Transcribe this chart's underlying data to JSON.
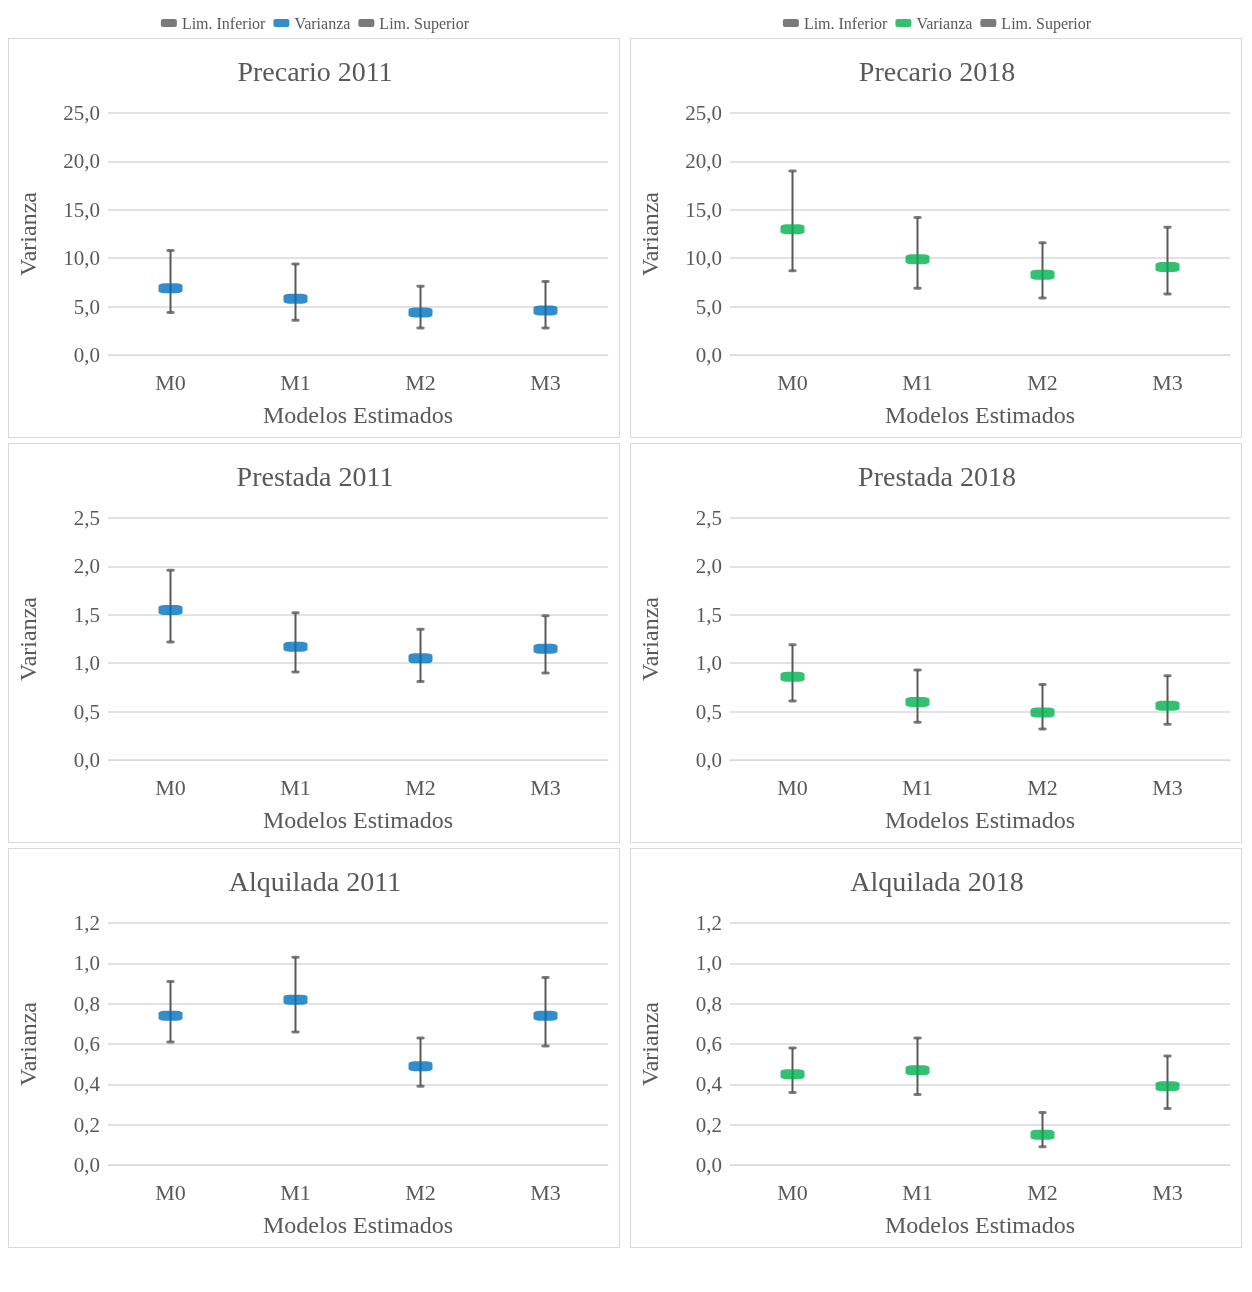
{
  "chart_data": [
    {
      "type": "scatter",
      "title": "Precario 2011",
      "xlabel": "Modelos Estimados",
      "ylabel": "Varianza",
      "categories": [
        "M0",
        "M1",
        "M2",
        "M3"
      ],
      "ylim": [
        0,
        25
      ],
      "yticks": [
        {
          "value": 0,
          "label": "0,0"
        },
        {
          "value": 5,
          "label": "5,0"
        },
        {
          "value": 10,
          "label": "10,0"
        },
        {
          "value": 15,
          "label": "15,0"
        },
        {
          "value": 20,
          "label": "20,0"
        },
        {
          "value": 25,
          "label": "25,0"
        }
      ],
      "grid": "y",
      "legend": "top",
      "series": [
        {
          "name": "Lim. Inferior",
          "color": "#595959",
          "values": [
            4.4,
            3.6,
            2.8,
            2.8
          ]
        },
        {
          "name": "Varianza",
          "color": "#0070c0",
          "values": [
            6.9,
            5.8,
            4.4,
            4.6
          ]
        },
        {
          "name": "Lim. Superior",
          "color": "#595959",
          "values": [
            10.8,
            9.4,
            7.1,
            7.6
          ]
        }
      ]
    },
    {
      "type": "scatter",
      "title": "Precario 2018",
      "xlabel": "Modelos Estimados",
      "ylabel": "Varianza",
      "categories": [
        "M0",
        "M1",
        "M2",
        "M3"
      ],
      "ylim": [
        0,
        25
      ],
      "yticks": [
        {
          "value": 0,
          "label": "0,0"
        },
        {
          "value": 5,
          "label": "5,0"
        },
        {
          "value": 10,
          "label": "10,0"
        },
        {
          "value": 15,
          "label": "15,0"
        },
        {
          "value": 20,
          "label": "20,0"
        },
        {
          "value": 25,
          "label": "25,0"
        }
      ],
      "grid": "y",
      "legend": "top",
      "series": [
        {
          "name": "Lim. Inferior",
          "color": "#595959",
          "values": [
            8.7,
            6.9,
            5.9,
            6.3
          ]
        },
        {
          "name": "Varianza",
          "color": "#00b050",
          "values": [
            13.0,
            9.9,
            8.3,
            9.1
          ]
        },
        {
          "name": "Lim. Superior",
          "color": "#595959",
          "values": [
            19.0,
            14.2,
            11.6,
            13.2
          ]
        }
      ]
    },
    {
      "type": "scatter",
      "title": "Prestada 2011",
      "xlabel": "Modelos Estimados",
      "ylabel": "Varianza",
      "categories": [
        "M0",
        "M1",
        "M2",
        "M3"
      ],
      "ylim": [
        0,
        2.5
      ],
      "yticks": [
        {
          "value": 0,
          "label": "0,0"
        },
        {
          "value": 0.5,
          "label": "0,5"
        },
        {
          "value": 1,
          "label": "1,0"
        },
        {
          "value": 1.5,
          "label": "1,5"
        },
        {
          "value": 2,
          "label": "2,0"
        },
        {
          "value": 2.5,
          "label": "2,5"
        }
      ],
      "grid": "y",
      "series": [
        {
          "color": "#595959",
          "values": [
            1.22,
            0.91,
            0.81,
            0.9
          ]
        },
        {
          "color": "#0070c0",
          "values": [
            1.55,
            1.17,
            1.05,
            1.15
          ]
        },
        {
          "color": "#595959",
          "values": [
            1.96,
            1.52,
            1.35,
            1.49
          ]
        }
      ]
    },
    {
      "type": "scatter",
      "title": "Prestada 2018",
      "xlabel": "Modelos Estimados",
      "ylabel": "Varianza",
      "categories": [
        "M0",
        "M1",
        "M2",
        "M3"
      ],
      "ylim": [
        0,
        2.5
      ],
      "yticks": [
        {
          "value": 0,
          "label": "0,0"
        },
        {
          "value": 0.5,
          "label": "0,5"
        },
        {
          "value": 1,
          "label": "1,0"
        },
        {
          "value": 1.5,
          "label": "1,5"
        },
        {
          "value": 2,
          "label": "2,0"
        },
        {
          "value": 2.5,
          "label": "2,5"
        }
      ],
      "grid": "y",
      "series": [
        {
          "color": "#595959",
          "values": [
            0.61,
            0.39,
            0.32,
            0.37
          ]
        },
        {
          "color": "#00b050",
          "values": [
            0.86,
            0.6,
            0.49,
            0.56
          ]
        },
        {
          "color": "#595959",
          "values": [
            1.19,
            0.93,
            0.78,
            0.87
          ]
        }
      ]
    },
    {
      "type": "scatter",
      "title": "Alquilada 2011",
      "xlabel": "Modelos Estimados",
      "ylabel": "Varianza",
      "categories": [
        "M0",
        "M1",
        "M2",
        "M3"
      ],
      "ylim": [
        0,
        1.2
      ],
      "yticks": [
        {
          "value": 0,
          "label": "0,0"
        },
        {
          "value": 0.2,
          "label": "0,2"
        },
        {
          "value": 0.4,
          "label": "0,4"
        },
        {
          "value": 0.6,
          "label": "0,6"
        },
        {
          "value": 0.8,
          "label": "0,8"
        },
        {
          "value": 1,
          "label": "1,0"
        },
        {
          "value": 1.2,
          "label": "1,2"
        }
      ],
      "grid": "y",
      "series": [
        {
          "color": "#595959",
          "values": [
            0.61,
            0.66,
            0.39,
            0.59
          ]
        },
        {
          "color": "#0070c0",
          "values": [
            0.74,
            0.82,
            0.49,
            0.74
          ]
        },
        {
          "color": "#595959",
          "values": [
            0.91,
            1.03,
            0.63,
            0.93
          ]
        }
      ]
    },
    {
      "type": "scatter",
      "title": "Alquilada 2018",
      "xlabel": "Modelos Estimados",
      "ylabel": "Varianza",
      "categories": [
        "M0",
        "M1",
        "M2",
        "M3"
      ],
      "ylim": [
        0,
        1.2
      ],
      "yticks": [
        {
          "value": 0,
          "label": "0,0"
        },
        {
          "value": 0.2,
          "label": "0,2"
        },
        {
          "value": 0.4,
          "label": "0,4"
        },
        {
          "value": 0.6,
          "label": "0,6"
        },
        {
          "value": 0.8,
          "label": "0,8"
        },
        {
          "value": 1,
          "label": "1,0"
        },
        {
          "value": 1.2,
          "label": "1,2"
        }
      ],
      "grid": "y",
      "series": [
        {
          "color": "#595959",
          "values": [
            0.36,
            0.35,
            0.09,
            0.28
          ]
        },
        {
          "color": "#00b050",
          "values": [
            0.45,
            0.47,
            0.15,
            0.39
          ]
        },
        {
          "color": "#595959",
          "values": [
            0.58,
            0.63,
            0.26,
            0.54
          ]
        }
      ]
    }
  ]
}
